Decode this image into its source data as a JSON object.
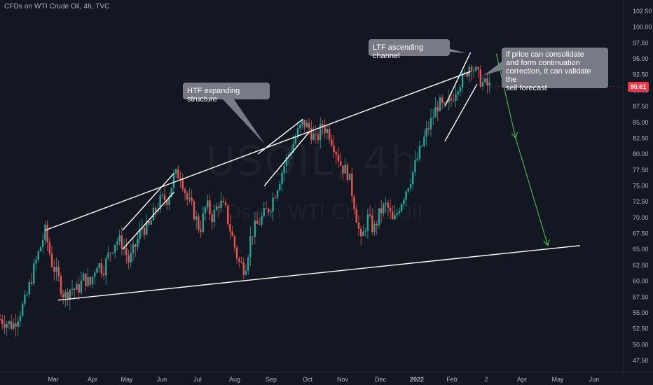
{
  "header": {
    "title": "CFDs on WTI Crude Oil, 4h, TVC"
  },
  "watermark": {
    "symbol": "USOIL, 4h",
    "description": "CFDs on WTI Crude Oil"
  },
  "chart_data": {
    "type": "candlestick",
    "y_axis": {
      "side": "right",
      "range": [
        46,
        103
      ],
      "ticks": [
        47.5,
        50.0,
        52.5,
        55.0,
        57.5,
        60.0,
        62.5,
        65.0,
        67.5,
        70.0,
        72.5,
        75.0,
        77.5,
        80.0,
        82.5,
        85.0,
        87.5,
        90.0,
        92.5,
        95.0,
        97.5,
        100.0,
        102.5
      ],
      "tick_labels": [
        "47.50",
        "50.00",
        "52.50",
        "55.00",
        "57.50",
        "60.00",
        "62.50",
        "65.00",
        "67.50",
        "70.00",
        "72.50",
        "75.00",
        "77.50",
        "80.00",
        "82.50",
        "85.00",
        "87.50",
        "90.00",
        "92.50",
        "95.00",
        "97.50",
        "100.00",
        "102.50"
      ]
    },
    "x_axis": {
      "labels": [
        "Mar",
        "Apr",
        "May",
        "Jun",
        "Jul",
        "Aug",
        "Sep",
        "Oct",
        "Nov",
        "Dec",
        "2022",
        "Feb",
        "2",
        "Apr",
        "May",
        "Jun"
      ],
      "bold_labels": [
        "2022"
      ]
    },
    "last_price": {
      "value": 90.61,
      "label": "90.61",
      "color": "#f23645"
    },
    "colors": {
      "up": "#26a69a",
      "down": "#ef5350",
      "background": "#131722",
      "drawing": "#ffffff",
      "forecast": "#4caf50",
      "callout": "#787b86"
    },
    "price_path": [
      [
        0,
        54.0
      ],
      [
        2,
        53.0
      ],
      [
        4,
        57.0
      ],
      [
        5,
        61.0
      ],
      [
        6,
        64.5
      ],
      [
        7,
        67.8
      ],
      [
        8,
        63.0
      ],
      [
        9,
        60.5
      ],
      [
        10,
        57.5
      ],
      [
        11,
        59.0
      ],
      [
        12,
        58.5
      ],
      [
        13,
        60.5
      ],
      [
        14,
        59.5
      ],
      [
        15,
        63.0
      ],
      [
        16,
        61.8
      ],
      [
        17,
        64.5
      ],
      [
        18,
        66.5
      ],
      [
        19,
        66.0
      ],
      [
        20,
        63.0
      ],
      [
        21,
        65.5
      ],
      [
        22,
        68.5
      ],
      [
        23,
        68.2
      ],
      [
        24,
        71.0
      ],
      [
        25,
        72.8
      ],
      [
        26,
        73.0
      ],
      [
        27,
        76.5
      ],
      [
        28,
        77.0
      ],
      [
        29,
        73.0
      ],
      [
        30,
        71.0
      ],
      [
        31,
        68.0
      ],
      [
        32,
        72.0
      ],
      [
        33,
        70.0
      ],
      [
        34,
        72.5
      ],
      [
        35,
        71.0
      ],
      [
        36,
        67.0
      ],
      [
        37,
        63.0
      ],
      [
        38,
        62.0
      ],
      [
        39,
        67.5
      ],
      [
        40,
        69.0
      ],
      [
        41,
        70.5
      ],
      [
        42,
        72.0
      ],
      [
        43,
        75.0
      ],
      [
        44,
        78.0
      ],
      [
        45,
        80.5
      ],
      [
        46,
        83.0
      ],
      [
        47,
        85.0
      ],
      [
        48,
        84.0
      ],
      [
        49,
        82.0
      ],
      [
        50,
        84.5
      ],
      [
        51,
        83.5
      ],
      [
        52,
        81.0
      ],
      [
        53,
        78.0
      ],
      [
        54,
        77.0
      ],
      [
        55,
        72.0
      ],
      [
        56,
        66.0
      ],
      [
        57,
        70.0
      ],
      [
        58,
        68.0
      ],
      [
        59,
        71.0
      ],
      [
        60,
        72.0
      ],
      [
        61,
        69.0
      ],
      [
        62,
        72.0
      ],
      [
        63,
        74.5
      ],
      [
        64,
        77.0
      ],
      [
        65,
        80.0
      ],
      [
        66,
        83.0
      ],
      [
        67,
        85.5
      ],
      [
        68,
        88.0
      ],
      [
        69,
        87.0
      ],
      [
        70,
        88.5
      ],
      [
        71,
        91.0
      ],
      [
        72,
        92.0
      ],
      [
        73,
        94.5
      ],
      [
        74,
        92.5
      ],
      [
        75,
        91.0
      ],
      [
        76,
        90.61
      ]
    ],
    "lines": [
      {
        "name": "htf-upper-trendline",
        "from": [
          7,
          68.0
        ],
        "to": [
          73,
          93.0
        ],
        "color": "#ffffff"
      },
      {
        "name": "htf-lower-trendline",
        "from": [
          9,
          57.0
        ],
        "to": [
          90,
          65.6
        ],
        "color": "#ffffff"
      },
      {
        "name": "jun-channel-upper",
        "from": [
          19,
          68.0
        ],
        "to": [
          27,
          77.0
        ],
        "color": "#ffffff"
      },
      {
        "name": "jun-channel-lower",
        "from": [
          19,
          65.0
        ],
        "to": [
          27,
          74.0
        ],
        "color": "#ffffff"
      },
      {
        "name": "oct-channel-upper",
        "from": [
          40,
          80.0
        ],
        "to": [
          47,
          85.5
        ],
        "color": "#ffffff"
      },
      {
        "name": "oct-channel-lower",
        "from": [
          41,
          75.0
        ],
        "to": [
          48,
          83.5
        ],
        "color": "#ffffff"
      },
      {
        "name": "ltf-channel-upper",
        "from": [
          69,
          87.5
        ],
        "to": [
          73,
          96.0
        ],
        "color": "#ffffff"
      },
      {
        "name": "ltf-channel-lower",
        "from": [
          69,
          82.0
        ],
        "to": [
          74,
          91.0
        ],
        "color": "#ffffff"
      }
    ],
    "forecast_arrow": {
      "points": [
        [
          77,
          95.8
        ],
        [
          80,
          82.5
        ],
        [
          85,
          65.6
        ]
      ],
      "color": "#4caf50"
    },
    "annotations": [
      {
        "name": "htf-label",
        "text": "HTF expanding structure"
      },
      {
        "name": "ltf-label",
        "text": "LTF ascending channel"
      },
      {
        "name": "forecast-label",
        "text": "if price can consolidate\nand form continuation\ncorrection, it can validate the\nsell forecast"
      }
    ]
  }
}
